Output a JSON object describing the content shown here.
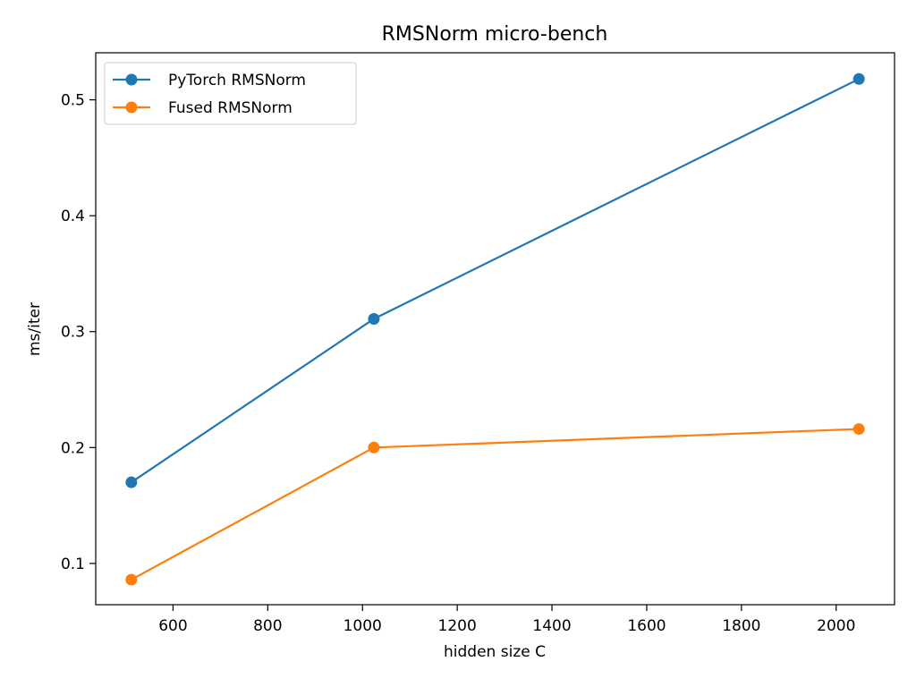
{
  "chart_data": {
    "type": "line",
    "title": "RMSNorm micro-bench",
    "xlabel": "hidden size C",
    "ylabel": "ms/iter",
    "xlim": [
      436.8,
      2123.2
    ],
    "ylim": [
      0.0644,
      0.5406
    ],
    "xticks": [
      600,
      800,
      1000,
      1200,
      1400,
      1600,
      1800,
      2000
    ],
    "xtick_labels": [
      "600",
      "800",
      "1000",
      "1200",
      "1400",
      "1600",
      "1800",
      "2000"
    ],
    "yticks": [
      0.1,
      0.2,
      0.3,
      0.4,
      0.5
    ],
    "ytick_labels": [
      "0.1",
      "0.2",
      "0.3",
      "0.4",
      "0.5"
    ],
    "grid": false,
    "legend_position": "top-left",
    "series": [
      {
        "name": "PyTorch RMSNorm",
        "color": "#1f77b4",
        "marker": "circle",
        "x": [
          512,
          1024,
          2048
        ],
        "y": [
          0.17,
          0.311,
          0.518
        ]
      },
      {
        "name": "Fused RMSNorm",
        "color": "#ff7f0e",
        "marker": "circle",
        "x": [
          512,
          1024,
          2048
        ],
        "y": [
          0.086,
          0.2,
          0.216
        ]
      }
    ]
  }
}
